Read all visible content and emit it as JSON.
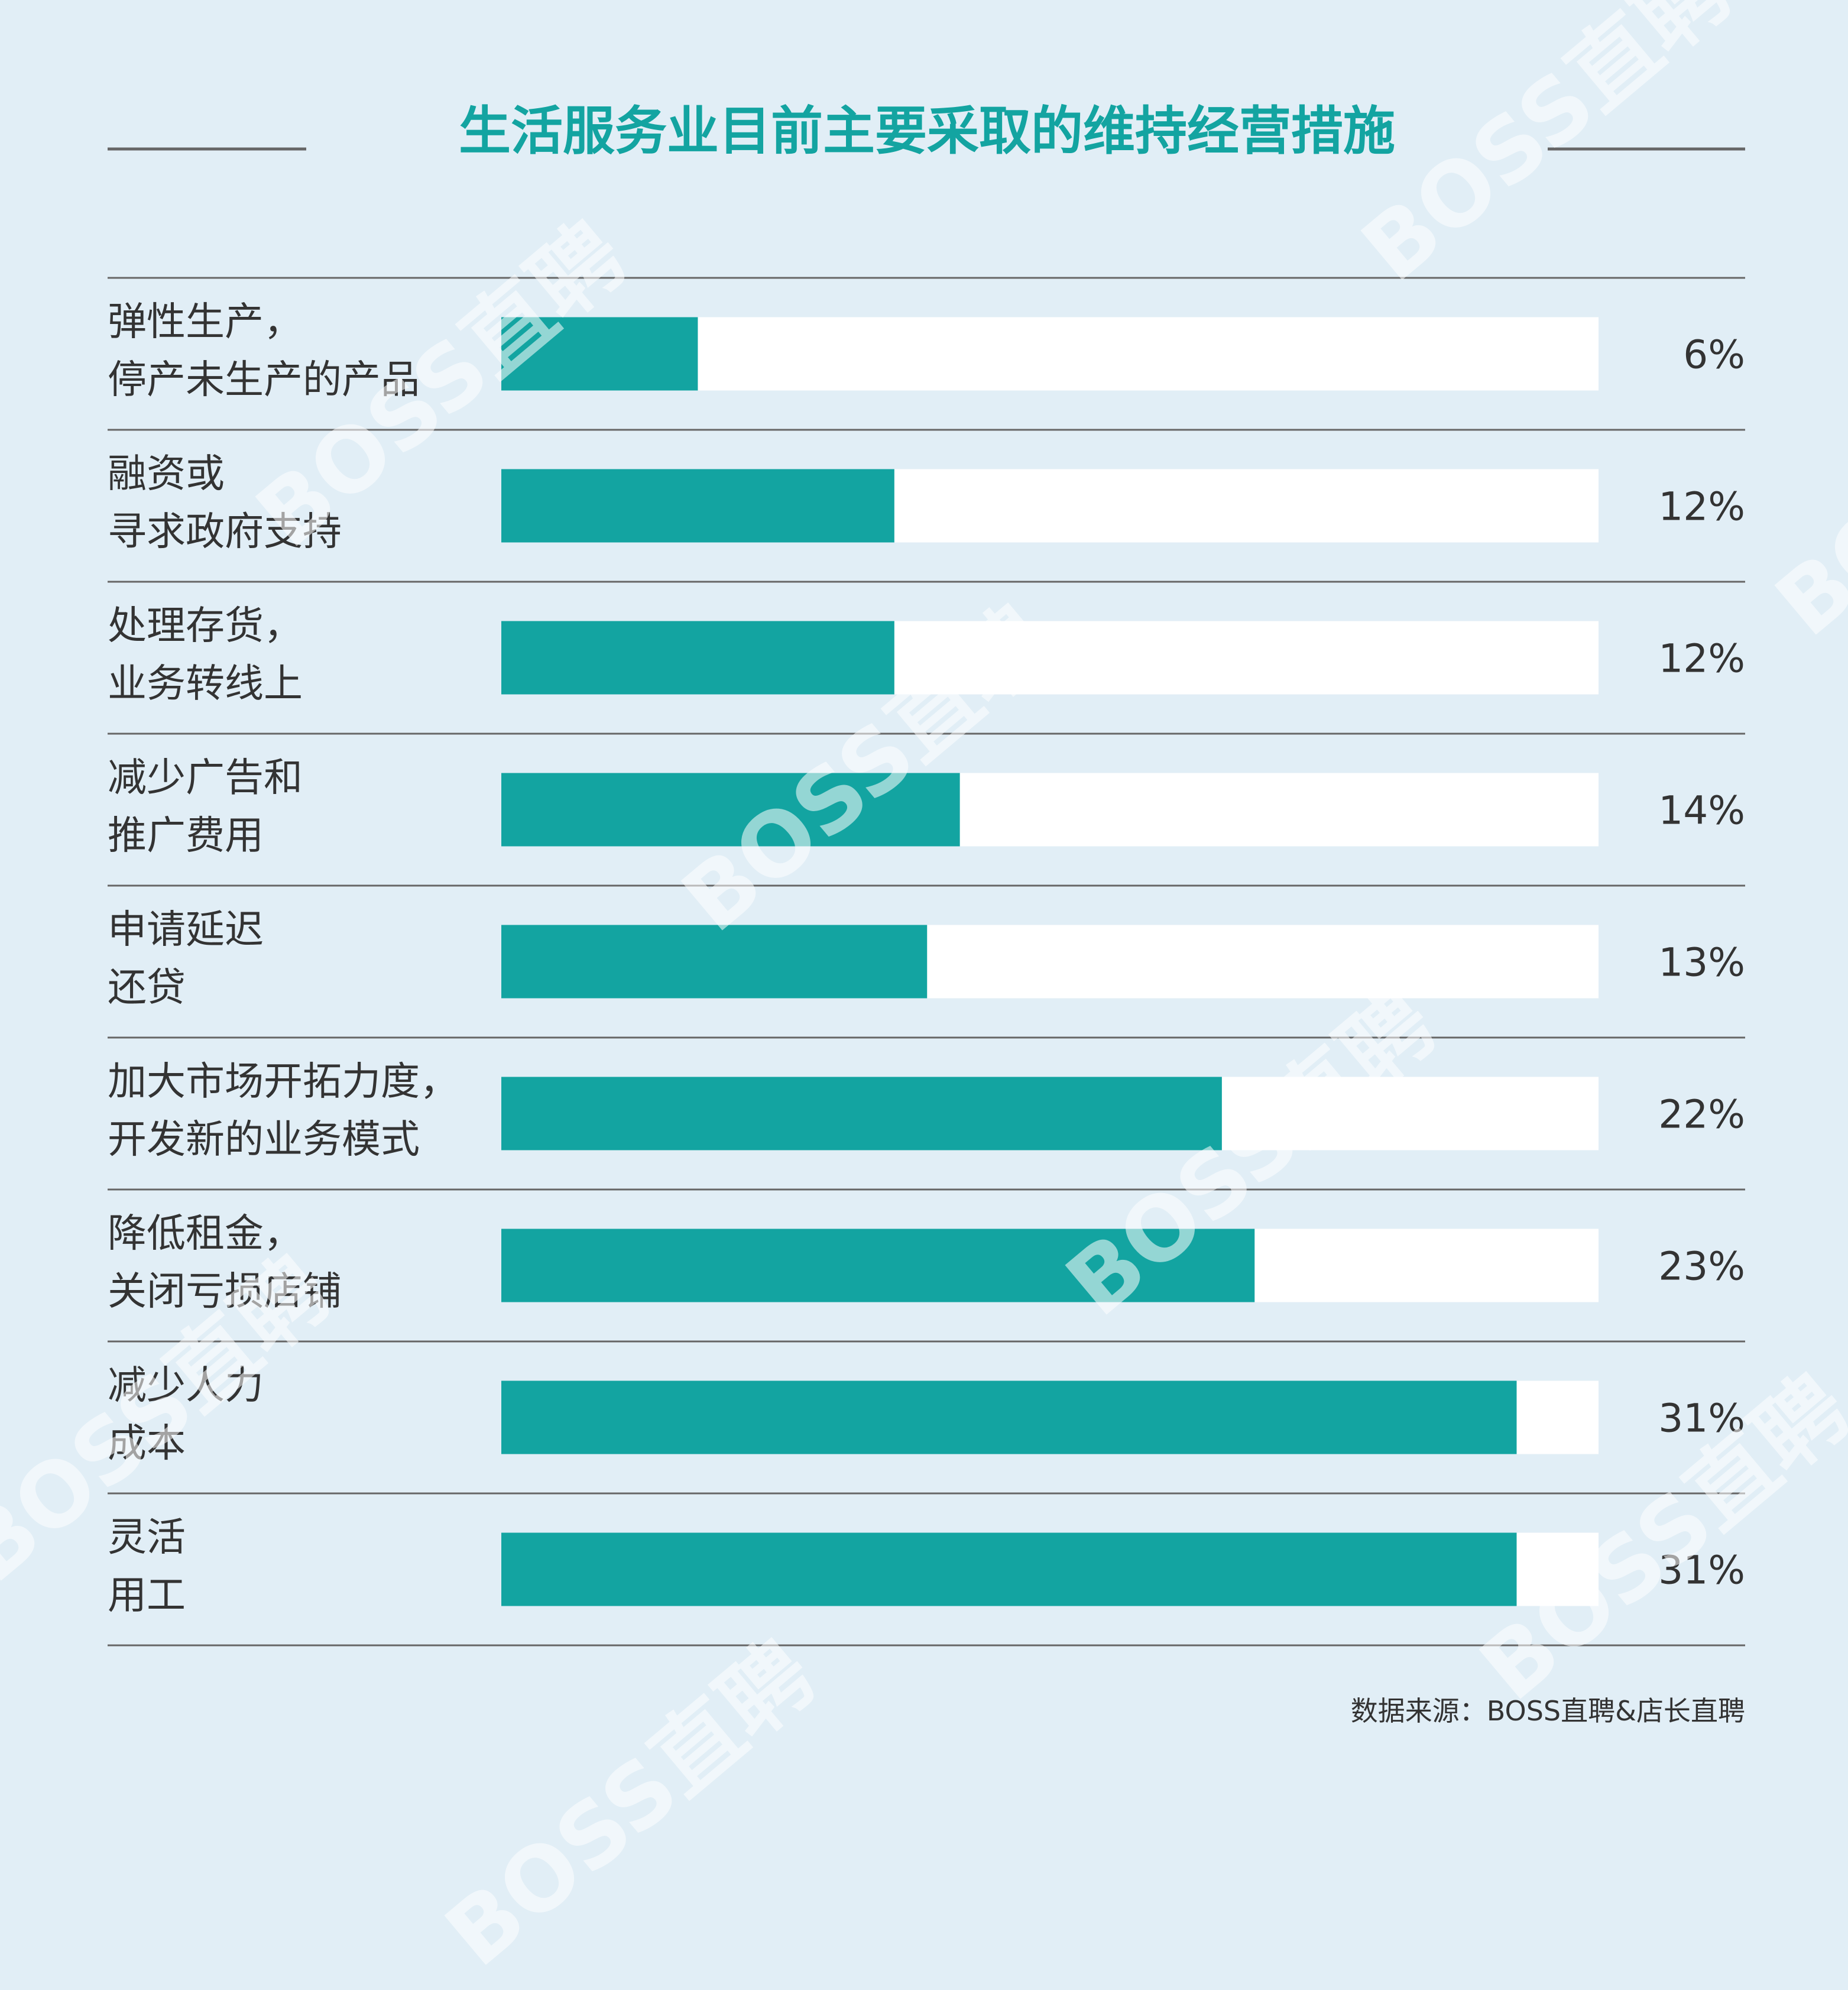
{
  "chart_data": {
    "type": "bar",
    "orientation": "horizontal",
    "title": "生活服务业目前主要采取的维持经营措施",
    "categories": [
      [
        "弹性生产，",
        "停产未生产的产品"
      ],
      [
        "融资或",
        "寻求政府支持"
      ],
      [
        "处理存货，",
        "业务转线上"
      ],
      [
        "减少广告和",
        "推广费用"
      ],
      [
        "申请延迟",
        "还贷"
      ],
      [
        "加大市场开拓力度，",
        "开发新的业务模式"
      ],
      [
        "降低租金，",
        "关闭亏损店铺"
      ],
      [
        "减少人力",
        "成本"
      ],
      [
        "灵活",
        "用工"
      ]
    ],
    "values": [
      6,
      12,
      12,
      14,
      13,
      22,
      23,
      31,
      31
    ],
    "value_labels": [
      "6%",
      "12%",
      "12%",
      "14%",
      "13%",
      "22%",
      "23%",
      "31%",
      "31%"
    ],
    "xlim": [
      0,
      33.5
    ],
    "unit": "%",
    "grid": false,
    "source": "数据来源：BOSS直聘&店长直聘",
    "colors": {
      "background": "#e1eef6",
      "bar": "#13a4a1",
      "track": "#ffffff",
      "title": "#13a4a1",
      "text": "#333333",
      "rule": "#666666"
    }
  },
  "watermark": "BOSS直聘"
}
